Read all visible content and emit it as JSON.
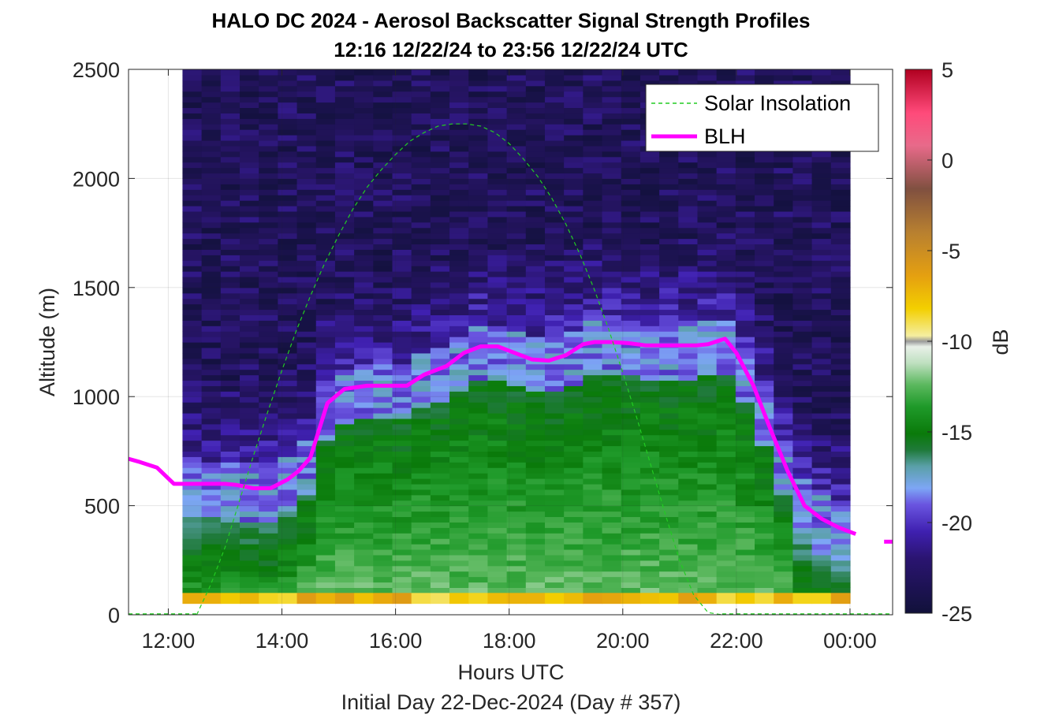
{
  "chart_data": {
    "type": "heatmap",
    "title": "HALO DC 2024 - Aerosol Backscatter Signal Strength Profiles",
    "subtitle": "12:16 12/22/24 to 23:56 12/22/24  UTC",
    "xlabel": "Hours UTC",
    "ylabel": "Altitude (m)",
    "footer": "Initial Day 22-Dec-2024 (Day # 357)",
    "xlim": [
      11.3,
      24.75
    ],
    "ylim": [
      0,
      2500
    ],
    "x_ticks": [
      {
        "v": 12,
        "label": "12:00"
      },
      {
        "v": 14,
        "label": "14:00"
      },
      {
        "v": 16,
        "label": "16:00"
      },
      {
        "v": 18,
        "label": "18:00"
      },
      {
        "v": 20,
        "label": "20:00"
      },
      {
        "v": 22,
        "label": "22:00"
      },
      {
        "v": 24,
        "label": "00:00"
      }
    ],
    "y_ticks": [
      0,
      500,
      1000,
      1500,
      2000,
      2500
    ],
    "colorbar": {
      "label": "dB",
      "min": -25,
      "max": 5,
      "ticks": [
        5,
        0,
        -5,
        -10,
        -15,
        -20,
        -25
      ]
    },
    "heatmap_extent": {
      "x_start": 12.25,
      "x_end": 24.0,
      "cols": 35,
      "y_start": 100,
      "y_end": 2500
    },
    "legend": {
      "placement": "top-right",
      "entries": [
        {
          "label": "Solar Insolation",
          "style": "dashed",
          "color": "#22cc22"
        },
        {
          "label": "BLH",
          "style": "solid",
          "color": "#ff00ff"
        }
      ]
    },
    "series": [
      {
        "name": "BLH",
        "color": "#ff00ff",
        "x": [
          11.3,
          11.5,
          11.8,
          12.1,
          12.5,
          13.0,
          13.2,
          13.5,
          13.8,
          14.1,
          14.3,
          14.5,
          14.8,
          15.1,
          15.5,
          15.8,
          16.2,
          16.5,
          16.9,
          17.2,
          17.5,
          17.8,
          18.1,
          18.4,
          18.7,
          19.0,
          19.3,
          19.5,
          19.8,
          20.1,
          20.4,
          20.7,
          21.0,
          21.3,
          21.5,
          21.8,
          22.0,
          22.3,
          22.6,
          22.9,
          23.2,
          23.5,
          23.8,
          24.1
        ],
        "y": [
          715,
          700,
          675,
          600,
          600,
          600,
          595,
          580,
          580,
          620,
          660,
          720,
          970,
          1035,
          1050,
          1050,
          1050,
          1100,
          1140,
          1200,
          1230,
          1230,
          1200,
          1170,
          1165,
          1190,
          1240,
          1250,
          1250,
          1245,
          1235,
          1235,
          1235,
          1235,
          1240,
          1265,
          1200,
          1050,
          850,
          660,
          500,
          440,
          400,
          370
        ]
      },
      {
        "name": "BLH",
        "color": "#ff00ff",
        "x": [
          24.6,
          24.75
        ],
        "y": [
          335,
          335
        ]
      },
      {
        "name": "Solar Insolation",
        "color": "#22cc22",
        "x": [
          12.5,
          12.75,
          13.0,
          13.25,
          13.5,
          13.75,
          14.0,
          14.25,
          14.5,
          14.75,
          15.0,
          15.25,
          15.5,
          15.75,
          16.0,
          16.25,
          16.5,
          16.75,
          17.0,
          17.25,
          17.5,
          17.75,
          18.0,
          18.25,
          18.5,
          18.75,
          19.0,
          19.25,
          19.5,
          19.75,
          20.0,
          20.25,
          20.5,
          20.75,
          21.0,
          21.25,
          21.5,
          21.75
        ],
        "y": [
          0,
          140,
          310,
          520,
          730,
          930,
          1120,
          1300,
          1460,
          1610,
          1740,
          1860,
          1960,
          2040,
          2110,
          2170,
          2210,
          2240,
          2250,
          2250,
          2240,
          2210,
          2160,
          2090,
          2010,
          1910,
          1790,
          1650,
          1490,
          1310,
          1110,
          900,
          680,
          460,
          250,
          90,
          10,
          0
        ]
      }
    ]
  }
}
